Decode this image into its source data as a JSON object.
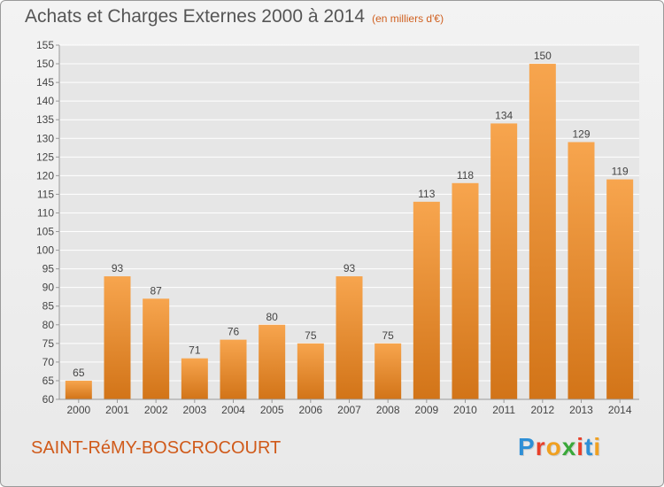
{
  "header": {
    "title": "Achats et Charges Externes 2000 à 2014",
    "unit": "(en milliers d'€)"
  },
  "footer": {
    "commune": "SAINT-RéMY-BOSCROCOURT",
    "logo_text": "Proxiti",
    "logo_colors": [
      "#2e8fd6",
      "#e8402a",
      "#f0a020",
      "#3aa83a",
      "#e8402a",
      "#2e8fd6",
      "#f0a020"
    ]
  },
  "colors": {
    "bar_light": "#f7a54e",
    "bar_dark": "#d27418",
    "grid": "#ffffff",
    "axis": "#999999",
    "text": "#444444"
  },
  "chart_data": {
    "type": "bar",
    "title": "Achats et Charges Externes 2000 à 2014",
    "subtitle": "(en milliers d'€)",
    "categories": [
      "2000",
      "2001",
      "2002",
      "2003",
      "2004",
      "2005",
      "2006",
      "2007",
      "2008",
      "2009",
      "2010",
      "2011",
      "2012",
      "2013",
      "2014"
    ],
    "values": [
      65,
      93,
      87,
      71,
      76,
      80,
      75,
      93,
      75,
      113,
      118,
      134,
      150,
      129,
      119
    ],
    "ylim": [
      60,
      155
    ],
    "yticks": [
      60,
      65,
      70,
      75,
      80,
      85,
      90,
      95,
      100,
      105,
      110,
      115,
      120,
      125,
      130,
      135,
      140,
      145,
      150,
      155
    ],
    "grid": true,
    "data_labels": true
  }
}
